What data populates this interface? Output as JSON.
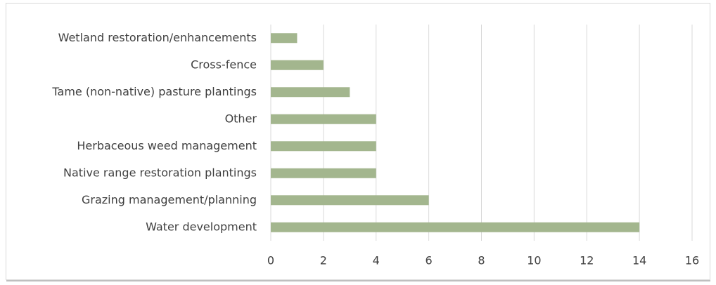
{
  "chart_data": {
    "type": "barh",
    "categories": [
      "Wetland restoration/enhancements",
      "Cross-fence",
      "Tame (non-native) pasture plantings",
      "Other",
      "Herbaceous weed management",
      "Native range restoration plantings",
      "Grazing management/planning",
      "Water development"
    ],
    "values": [
      1,
      2,
      3,
      4,
      4,
      4,
      6,
      14
    ],
    "color": "#a3b68e",
    "xlim": [
      0,
      16
    ],
    "xticks": [
      0,
      2,
      4,
      6,
      8,
      10,
      12,
      14,
      16
    ],
    "grid": true
  }
}
